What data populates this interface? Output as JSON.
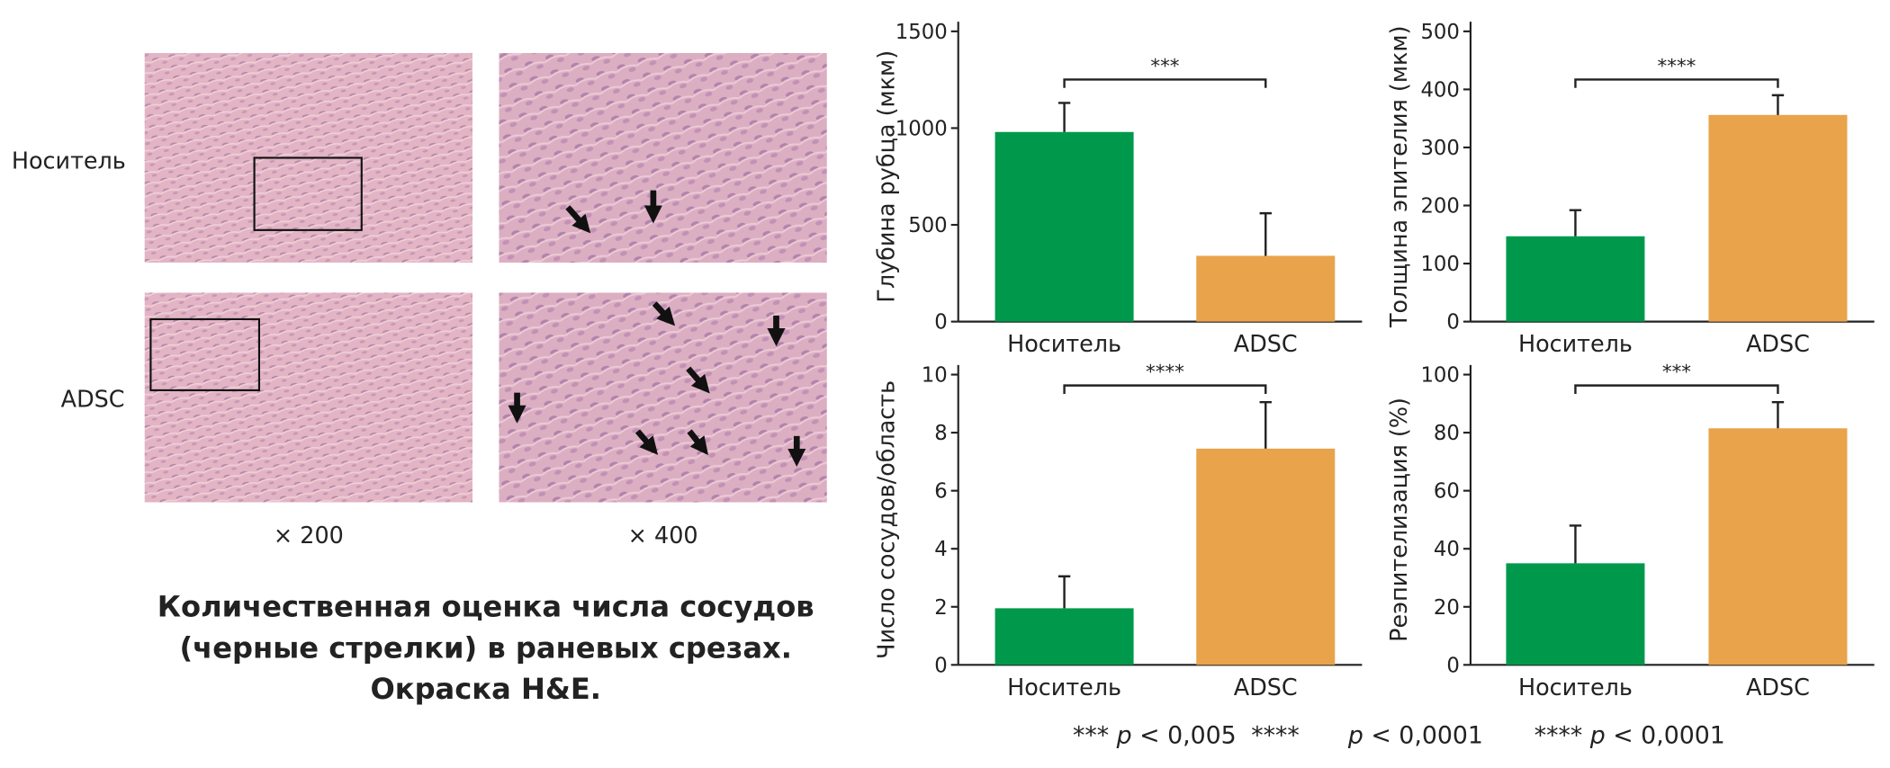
{
  "figure": {
    "row_labels": [
      "Носитель",
      "ADSC"
    ],
    "magnifications": [
      "× 200",
      "× 400"
    ],
    "caption": [
      "Количественная оценка числа сосудов",
      "(черные стрелки) в раневых срезах.",
      "Окраска H&E."
    ],
    "footnotes": [
      {
        "marker": "***",
        "symbol": "p",
        "condition": "< 0,005"
      },
      {
        "marker": "****",
        "symbol": "p",
        "condition": "< 0,0001"
      },
      {
        "marker": "****",
        "symbol": "p",
        "condition": "< 0,0001"
      }
    ]
  },
  "chart_data": [
    {
      "type": "bar",
      "y_label": "Глубина рубца (мкм)",
      "categories": [
        "Носитель",
        "ADSC"
      ],
      "values": [
        980,
        340
      ],
      "errors": [
        150,
        220
      ],
      "colors": [
        "#00994c",
        "#e8a34b"
      ],
      "ylim": [
        0,
        1500
      ],
      "yticks": [
        0,
        500,
        1000,
        1500
      ],
      "significance": "***"
    },
    {
      "type": "bar",
      "y_label": "Толщина эпителия (мкм)",
      "categories": [
        "Носитель",
        "ADSC"
      ],
      "values": [
        147,
        356
      ],
      "errors": [
        45,
        34
      ],
      "colors": [
        "#00994c",
        "#e8a34b"
      ],
      "ylim": [
        0,
        500
      ],
      "yticks": [
        0,
        100,
        200,
        300,
        400,
        500
      ],
      "significance": "****"
    },
    {
      "type": "bar",
      "y_label": "Число сосудов/область",
      "categories": [
        "Носитель",
        "ADSC"
      ],
      "values": [
        1.95,
        7.45
      ],
      "errors": [
        1.1,
        1.6
      ],
      "colors": [
        "#00994c",
        "#e8a34b"
      ],
      "ylim": [
        0,
        10
      ],
      "yticks": [
        0,
        2,
        4,
        6,
        8,
        10
      ],
      "significance": "****"
    },
    {
      "type": "bar",
      "y_label": "Реэпителизация (%)",
      "categories": [
        "Носитель",
        "ADSC"
      ],
      "values": [
        35,
        81.5
      ],
      "errors": [
        13,
        9
      ],
      "colors": [
        "#00994c",
        "#e8a34b"
      ],
      "ylim": [
        0,
        100
      ],
      "yticks": [
        0,
        20,
        40,
        60,
        80,
        100
      ],
      "significance": "***"
    }
  ]
}
